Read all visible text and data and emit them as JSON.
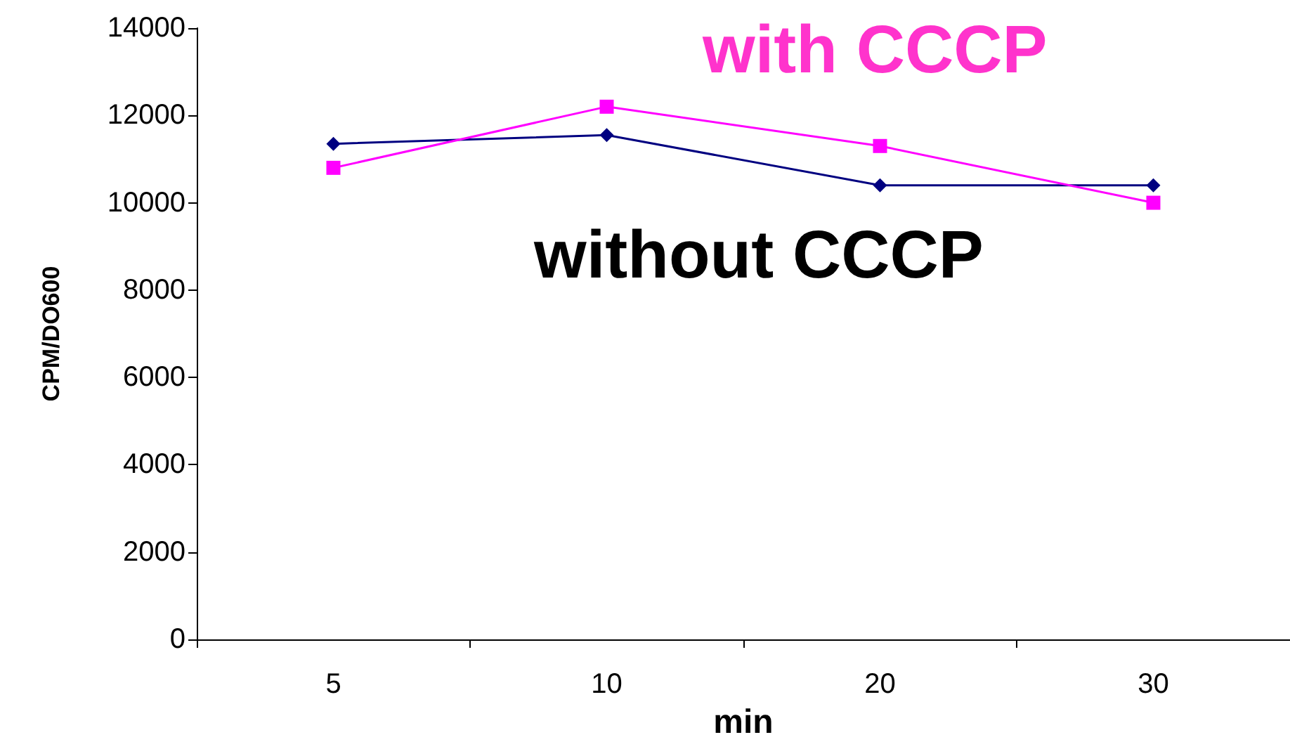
{
  "chart_data": {
    "type": "line",
    "xlabel": "min",
    "ylabel": "CPM/DO600",
    "categories": [
      "5",
      "10",
      "20",
      "30"
    ],
    "series": [
      {
        "name": "without CCCP",
        "color": "#000080",
        "marker": "diamond",
        "values": [
          11350,
          11550,
          10400,
          10400
        ]
      },
      {
        "name": "with CCCP",
        "color": "#ff00ff",
        "marker": "square",
        "values": [
          10800,
          12200,
          11300,
          10000
        ]
      }
    ],
    "ylim": [
      0,
      14000
    ],
    "yticks": [
      0,
      2000,
      4000,
      6000,
      8000,
      10000,
      12000,
      14000
    ],
    "grid": false,
    "legend": false
  }
}
